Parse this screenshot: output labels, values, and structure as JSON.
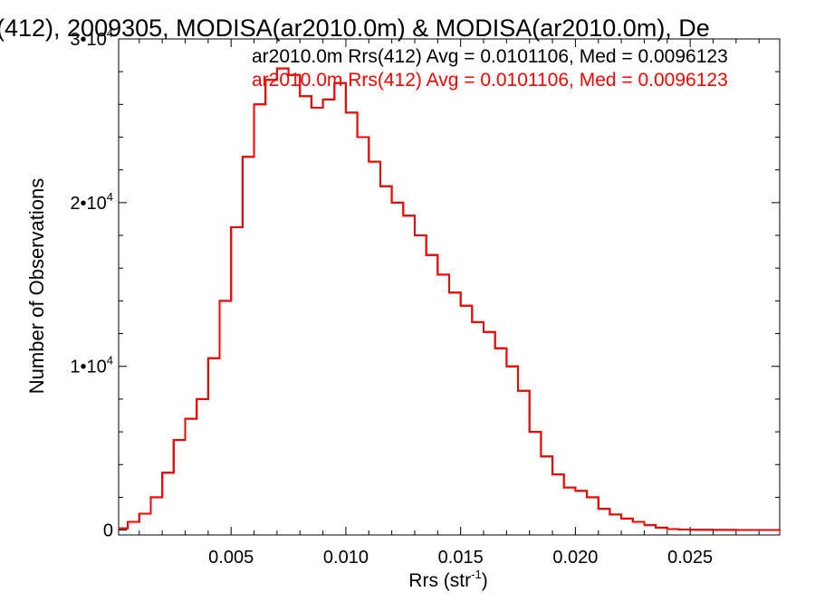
{
  "chart_data": {
    "type": "line",
    "title": "(412), 2009305, MODISA(ar2010.0m) & MODISA(ar2010.0m), De",
    "xlabel": "Rrs (str",
    "xlabel_sup": "-1",
    "xlabel_end": ")",
    "ylabel": "Number of Observations",
    "xlim": [
      0.0001,
      0.0289
    ],
    "ylim": [
      -300,
      30000
    ],
    "x_ticks": [
      0.005,
      0.01,
      0.015,
      0.02,
      0.025
    ],
    "x_tick_labels": [
      "0.005",
      "0.010",
      "0.015",
      "0.020",
      "0.025"
    ],
    "y_ticks": [
      {
        "value": 0,
        "mantissa": "0",
        "exp": ""
      },
      {
        "value": 10000,
        "mantissa": "1•10",
        "exp": "4"
      },
      {
        "value": 20000,
        "mantissa": "2•10",
        "exp": "4"
      },
      {
        "value": 30000,
        "mantissa": "3•10",
        "exp": "4"
      }
    ],
    "series": [
      {
        "name": "ar2010.0m Rrs(412) Avg = 0.0101106, Med = 0.0096123",
        "color": "#000000",
        "x": [
          0.0001,
          0.0005,
          0.001,
          0.0015,
          0.002,
          0.0025,
          0.003,
          0.0035,
          0.004,
          0.0045,
          0.005,
          0.0055,
          0.006,
          0.0065,
          0.007,
          0.0075,
          0.008,
          0.0085,
          0.009,
          0.0095,
          0.01,
          0.0105,
          0.011,
          0.0115,
          0.012,
          0.0125,
          0.013,
          0.0135,
          0.014,
          0.0145,
          0.015,
          0.0155,
          0.016,
          0.0165,
          0.017,
          0.0175,
          0.018,
          0.0185,
          0.019,
          0.0195,
          0.02,
          0.0205,
          0.021,
          0.0215,
          0.022,
          0.0225,
          0.023,
          0.0235,
          0.024,
          0.0245,
          0.025,
          0.026,
          0.027,
          0.028,
          0.0289
        ],
        "values": [
          100,
          500,
          1000,
          2000,
          3500,
          5500,
          6800,
          8000,
          10500,
          14000,
          18500,
          22800,
          26000,
          27500,
          28200,
          27800,
          26500,
          25800,
          26300,
          27300,
          25500,
          24000,
          22500,
          21000,
          20000,
          19200,
          18000,
          16800,
          15600,
          14500,
          13700,
          12700,
          12100,
          11100,
          10000,
          8500,
          6000,
          4500,
          3400,
          2600,
          2400,
          2000,
          1300,
          950,
          700,
          500,
          300,
          150,
          60,
          30,
          20,
          10,
          5,
          2,
          0
        ]
      },
      {
        "name": "ar2010.0m Rrs(412) Avg = 0.0101106, Med = 0.0096123",
        "color": "#ff0000",
        "x": [
          0.0001,
          0.0005,
          0.001,
          0.0015,
          0.002,
          0.0025,
          0.003,
          0.0035,
          0.004,
          0.0045,
          0.005,
          0.0055,
          0.006,
          0.0065,
          0.007,
          0.0075,
          0.008,
          0.0085,
          0.009,
          0.0095,
          0.01,
          0.0105,
          0.011,
          0.0115,
          0.012,
          0.0125,
          0.013,
          0.0135,
          0.014,
          0.0145,
          0.015,
          0.0155,
          0.016,
          0.0165,
          0.017,
          0.0175,
          0.018,
          0.0185,
          0.019,
          0.0195,
          0.02,
          0.0205,
          0.021,
          0.0215,
          0.022,
          0.0225,
          0.023,
          0.0235,
          0.024,
          0.0245,
          0.025,
          0.026,
          0.027,
          0.028,
          0.0289
        ],
        "values": [
          100,
          500,
          1000,
          2000,
          3500,
          5500,
          6800,
          8000,
          10500,
          14000,
          18500,
          22800,
          26000,
          27500,
          28200,
          27800,
          26500,
          25800,
          26300,
          27300,
          25500,
          24000,
          22500,
          21000,
          20000,
          19200,
          18000,
          16800,
          15600,
          14500,
          13700,
          12700,
          12100,
          11100,
          10000,
          8500,
          6000,
          4500,
          3400,
          2600,
          2400,
          2000,
          1300,
          950,
          700,
          500,
          300,
          150,
          60,
          30,
          20,
          10,
          5,
          2,
          0
        ]
      }
    ],
    "grid": false,
    "legend_position": "top-right"
  }
}
